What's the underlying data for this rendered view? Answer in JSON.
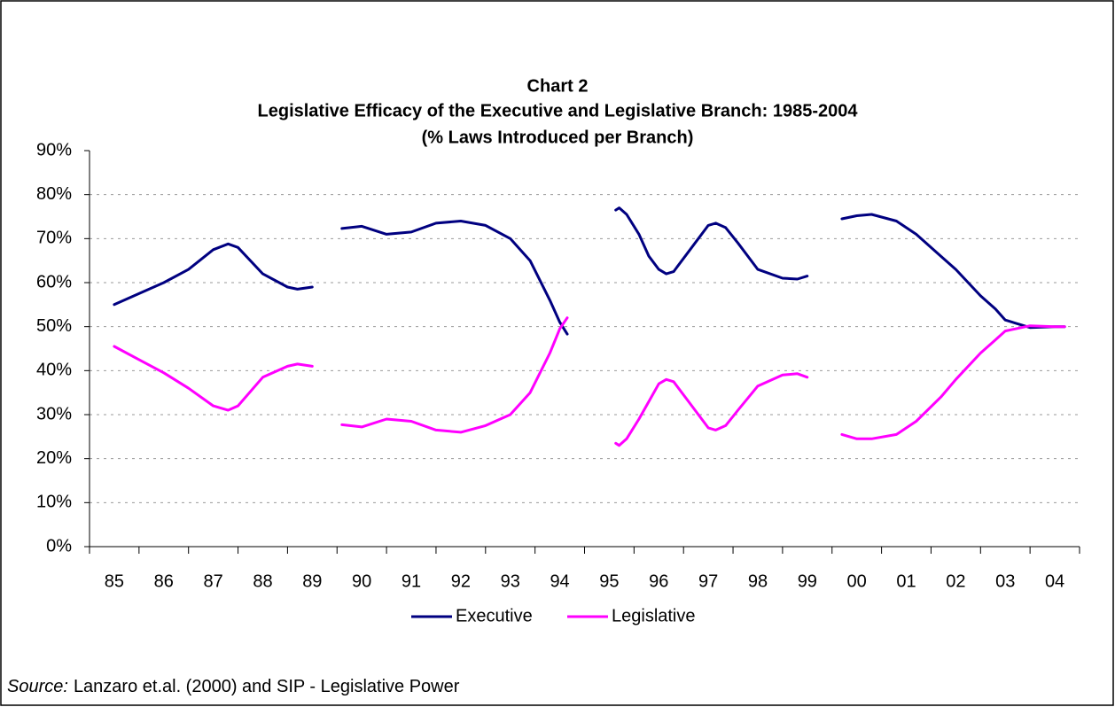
{
  "chart_data": {
    "type": "line",
    "title": "Chart 2",
    "subtitle": "Legislative Efficacy of the Executive and Legislative Branch: 1985-2004",
    "subtitle2": "(% Laws Introduced per Branch)",
    "x": [
      1985,
      1985.5,
      1986,
      1986.5,
      1987,
      1987.3,
      1987.5,
      1988,
      1988.5,
      1988.7,
      1989,
      null,
      1989.6,
      1990,
      1990.5,
      1991,
      1991.5,
      1992,
      1992.5,
      1993,
      1993.4,
      1993.8,
      1994,
      1994.15,
      null,
      1995.13,
      1995.2,
      1995.35,
      1995.6,
      1995.8,
      1996,
      1996.15,
      1996.3,
      1996.6,
      1997,
      1997.15,
      1997.35,
      1997.6,
      1998,
      1998.5,
      1998.8,
      1999,
      null,
      1999.7,
      2000,
      2000.3,
      2000.8,
      2001.2,
      2001.7,
      2002,
      2002.5,
      2002.8,
      2003,
      2003.5,
      2004,
      2004.2
    ],
    "series": [
      {
        "name": "Executive",
        "color": "#000080",
        "values": [
          55,
          57.5,
          60,
          63,
          67.5,
          68.8,
          68,
          62,
          59,
          58.5,
          59,
          null,
          72.3,
          72.8,
          71,
          71.5,
          73.5,
          74,
          73,
          70,
          65,
          56,
          51,
          48.3,
          null,
          76.5,
          77,
          75.5,
          71,
          66,
          63,
          62,
          62.5,
          67,
          73,
          73.5,
          72.5,
          69,
          63,
          61,
          60.8,
          61.5,
          null,
          74.5,
          75.2,
          75.5,
          74,
          71,
          66,
          63,
          57,
          54,
          51.5,
          49.8,
          50,
          50
        ]
      },
      {
        "name": "Legislative",
        "color": "#ff00ff",
        "values": [
          45.5,
          42.5,
          39.5,
          36,
          32,
          31,
          32,
          38.5,
          41,
          41.5,
          41,
          null,
          27.7,
          27.2,
          29,
          28.5,
          26.5,
          26,
          27.5,
          30,
          35,
          44,
          49.5,
          52,
          null,
          23.5,
          23,
          24.5,
          29,
          33,
          37,
          38,
          37.5,
          33,
          27,
          26.5,
          27.5,
          31,
          36.5,
          39,
          39.3,
          38.5,
          null,
          25.5,
          24.5,
          24.5,
          25.5,
          28.5,
          34,
          38,
          44,
          47,
          49,
          50.2,
          50,
          50
        ]
      }
    ],
    "xlim": [
      1984.5,
      2004.5
    ],
    "xticks": [
      {
        "value": 1985,
        "label": "85"
      },
      {
        "value": 1986,
        "label": "86"
      },
      {
        "value": 1987,
        "label": "87"
      },
      {
        "value": 1988,
        "label": "88"
      },
      {
        "value": 1989,
        "label": "89"
      },
      {
        "value": 1990,
        "label": "90"
      },
      {
        "value": 1991,
        "label": "91"
      },
      {
        "value": 1992,
        "label": "92"
      },
      {
        "value": 1993,
        "label": "93"
      },
      {
        "value": 1994,
        "label": "94"
      },
      {
        "value": 1995,
        "label": "95"
      },
      {
        "value": 1996,
        "label": "96"
      },
      {
        "value": 1997,
        "label": "97"
      },
      {
        "value": 1998,
        "label": "98"
      },
      {
        "value": 1999,
        "label": "99"
      },
      {
        "value": 2000,
        "label": "00"
      },
      {
        "value": 2001,
        "label": "01"
      },
      {
        "value": 2002,
        "label": "02"
      },
      {
        "value": 2003,
        "label": "03"
      },
      {
        "value": 2004,
        "label": "04"
      }
    ],
    "ylim": [
      0,
      90
    ],
    "yticks": [
      {
        "value": 0,
        "label": "0%"
      },
      {
        "value": 10,
        "label": "10%"
      },
      {
        "value": 20,
        "label": "20%"
      },
      {
        "value": 30,
        "label": "30%"
      },
      {
        "value": 40,
        "label": "40%"
      },
      {
        "value": 50,
        "label": "50%"
      },
      {
        "value": 60,
        "label": "60%"
      },
      {
        "value": 70,
        "label": "70%"
      },
      {
        "value": 80,
        "label": "80%"
      },
      {
        "value": 90,
        "label": "90%"
      }
    ],
    "grid": true,
    "legend": "bottom",
    "note_label": "Source:",
    "note": "Lanzaro et.al. (2000) and SIP - Legislative Power"
  }
}
